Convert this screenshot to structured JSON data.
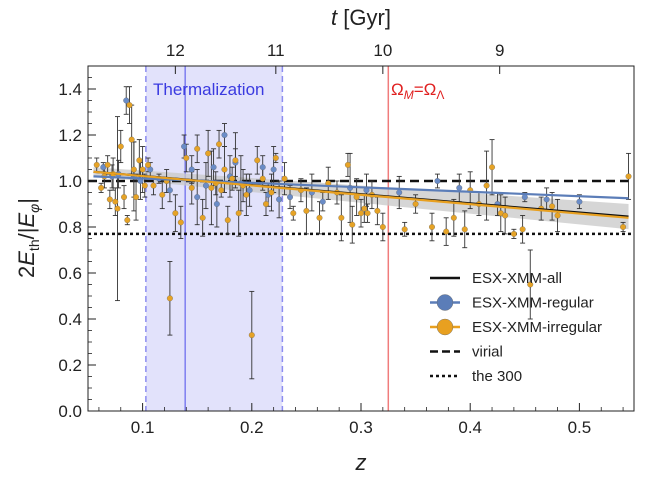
{
  "chart_data": {
    "type": "scatter",
    "xlabel": "z",
    "ylabel": "2E_th/|E_φ|",
    "top_axis_label": "t [Gyr]",
    "xlim": [
      0.05,
      0.55
    ],
    "ylim": [
      0.0,
      1.5
    ],
    "x_ticks": [
      0.1,
      0.2,
      0.3,
      0.4,
      0.5
    ],
    "x_tick_labels": [
      "0.1",
      "0.2",
      "0.3",
      "0.4",
      "0.5"
    ],
    "y_ticks": [
      0.0,
      0.2,
      0.4,
      0.6,
      0.8,
      1.0,
      1.2,
      1.4
    ],
    "y_tick_labels": [
      "0.0",
      "0.2",
      "0.4",
      "0.6",
      "0.8",
      "1.0",
      "1.2",
      "1.4"
    ],
    "top_ticks": [
      {
        "label": "12",
        "z": 0.13
      },
      {
        "label": "11",
        "z": 0.222
      },
      {
        "label": "10",
        "z": 0.32
      },
      {
        "label": "9",
        "z": 0.427
      }
    ],
    "thermalization": {
      "label": "Thermalization",
      "z_min": 0.103,
      "z_max": 0.228,
      "z_line": 0.139,
      "color": "#3a3ae0",
      "fill": "#e2e2fb"
    },
    "omega_line": {
      "label_main": "Ω",
      "label_sub": "M",
      "label_tail": "=Ω",
      "label_sub2": "Λ",
      "z": 0.325,
      "color": "#f07c7c",
      "text_color": "#e02020"
    },
    "reference_lines": [
      {
        "name": "virial",
        "y": 1.0,
        "style": "dashed"
      },
      {
        "name": "the 300",
        "y": 0.77,
        "style": "dotted"
      }
    ],
    "fits": [
      {
        "name": "ESX-XMM-all",
        "x": [
          0.055,
          0.545
        ],
        "y": [
          1.04,
          0.845
        ],
        "color": "#111111"
      },
      {
        "name": "ESX-XMM-regular",
        "x": [
          0.055,
          0.545
        ],
        "y": [
          1.02,
          0.925
        ],
        "color": "#5b7db8"
      },
      {
        "name": "ESX-XMM-irregular",
        "x": [
          0.055,
          0.545
        ],
        "y": [
          1.04,
          0.84
        ],
        "color": "#e8a020"
      }
    ],
    "fit_band": {
      "x": [
        0.055,
        0.545
      ],
      "upper": [
        1.06,
        0.9
      ],
      "lower": [
        1.02,
        0.79
      ]
    },
    "legend": [
      {
        "label": "ESX-XMM-all",
        "symbol": "line",
        "color": "#111111"
      },
      {
        "label": "ESX-XMM-regular",
        "symbol": "dot-line",
        "color": "#5b7db8"
      },
      {
        "label": "ESX-XMM-irregular",
        "symbol": "dot-line",
        "color": "#e8a020"
      },
      {
        "label": "virial",
        "symbol": "dashed",
        "color": "#111111"
      },
      {
        "label": "the 300",
        "symbol": "dotted",
        "color": "#111111"
      }
    ],
    "series": [
      {
        "name": "ESX-XMM-regular",
        "color": "#6a8cc7",
        "points": [
          [
            0.064,
            1.06,
            0.02
          ],
          [
            0.072,
            1.02,
            0.05
          ],
          [
            0.078,
            1.03,
            0.06
          ],
          [
            0.085,
            1.35,
            0.06
          ],
          [
            0.092,
            1.02,
            0.15
          ],
          [
            0.098,
            1.0,
            0.08
          ],
          [
            0.107,
            1.05,
            0.03
          ],
          [
            0.115,
            1.01,
            0.02
          ],
          [
            0.125,
            0.96,
            0.05
          ],
          [
            0.138,
            1.15,
            0.05
          ],
          [
            0.145,
            1.05,
            0.06
          ],
          [
            0.15,
            0.93,
            0.12
          ],
          [
            0.158,
            0.98,
            0.1
          ],
          [
            0.165,
            1.06,
            0.08
          ],
          [
            0.168,
            0.9,
            0.1
          ],
          [
            0.175,
            1.2,
            0.05
          ],
          [
            0.18,
            1.02,
            0.09
          ],
          [
            0.185,
            1.08,
            0.06
          ],
          [
            0.19,
            0.99,
            0.12
          ],
          [
            0.198,
            0.96,
            0.07
          ],
          [
            0.21,
            1.06,
            0.05
          ],
          [
            0.215,
            0.94,
            0.05
          ],
          [
            0.22,
            1.05,
            0.1
          ],
          [
            0.225,
            0.92,
            0.08
          ],
          [
            0.235,
            0.93,
            0.05
          ],
          [
            0.255,
            0.95,
            0.08
          ],
          [
            0.265,
            0.91,
            0.04
          ],
          [
            0.29,
            0.97,
            0.15
          ],
          [
            0.305,
            0.96,
            0.07
          ],
          [
            0.335,
            0.95,
            0.07
          ],
          [
            0.37,
            1.0,
            0.03
          ],
          [
            0.39,
            0.97,
            0.06
          ],
          [
            0.425,
            0.9,
            0.05
          ],
          [
            0.45,
            0.93,
            0.02
          ],
          [
            0.47,
            0.92,
            0.05
          ],
          [
            0.5,
            0.91,
            0.03
          ]
        ]
      },
      {
        "name": "ESX-XMM-irregular",
        "color": "#e6a326",
        "points": [
          [
            0.058,
            1.07,
            0.03
          ],
          [
            0.062,
            0.97,
            0.02
          ],
          [
            0.065,
            1.02,
            0.05
          ],
          [
            0.068,
            1.07,
            0.04
          ],
          [
            0.07,
            0.92,
            0.04
          ],
          [
            0.073,
            1.03,
            0.07
          ],
          [
            0.075,
            0.91,
            0.06
          ],
          [
            0.077,
            0.88,
            0.4
          ],
          [
            0.08,
            1.15,
            0.07
          ],
          [
            0.083,
            0.93,
            0.05
          ],
          [
            0.086,
            0.83,
            0.02
          ],
          [
            0.088,
            1.33,
            0.08
          ],
          [
            0.09,
            1.18,
            0.15
          ],
          [
            0.092,
            1.05,
            0.12
          ],
          [
            0.094,
            0.93,
            0.1
          ],
          [
            0.097,
            1.09,
            0.09
          ],
          [
            0.1,
            1.05,
            0.1
          ],
          [
            0.102,
            0.98,
            0.05
          ],
          [
            0.105,
            1.07,
            0.03
          ],
          [
            0.11,
            0.98,
            0.04
          ],
          [
            0.118,
            0.94,
            0.06
          ],
          [
            0.122,
            1.0,
            0.05
          ],
          [
            0.125,
            0.49,
            0.16
          ],
          [
            0.13,
            0.86,
            0.08
          ],
          [
            0.135,
            0.82,
            0.07
          ],
          [
            0.14,
            1.1,
            0.06
          ],
          [
            0.145,
            0.97,
            0.07
          ],
          [
            0.15,
            1.14,
            0.06
          ],
          [
            0.155,
            0.84,
            0.08
          ],
          [
            0.16,
            1.12,
            0.1
          ],
          [
            0.163,
            0.97,
            0.16
          ],
          [
            0.167,
            0.99,
            0.05
          ],
          [
            0.17,
            1.16,
            0.06
          ],
          [
            0.172,
            0.96,
            0.03
          ],
          [
            0.175,
            1.05,
            0.1
          ],
          [
            0.178,
            0.83,
            0.06
          ],
          [
            0.182,
            1.01,
            0.05
          ],
          [
            0.185,
            1.09,
            0.12
          ],
          [
            0.188,
            0.86,
            0.1
          ],
          [
            0.192,
            0.98,
            0.07
          ],
          [
            0.195,
            0.94,
            0.09
          ],
          [
            0.2,
            0.33,
            0.19
          ],
          [
            0.205,
            1.09,
            0.06
          ],
          [
            0.21,
            1.01,
            0.05
          ],
          [
            0.213,
            0.9,
            0.05
          ],
          [
            0.218,
            0.95,
            0.08
          ],
          [
            0.222,
            1.1,
            0.02
          ],
          [
            0.23,
            1.01,
            0.07
          ],
          [
            0.238,
            0.86,
            0.03
          ],
          [
            0.245,
            0.96,
            0.05
          ],
          [
            0.25,
            0.87,
            0.1
          ],
          [
            0.262,
            0.84,
            0.07
          ],
          [
            0.27,
            0.99,
            0.07
          ],
          [
            0.278,
            0.95,
            0.05
          ],
          [
            0.282,
            0.84,
            0.1
          ],
          [
            0.288,
            1.07,
            0.05
          ],
          [
            0.292,
            0.81,
            0.08
          ],
          [
            0.296,
            0.93,
            0.08
          ],
          [
            0.3,
            0.86,
            0.06
          ],
          [
            0.303,
            0.88,
            0.06
          ],
          [
            0.306,
            0.86,
            0.04
          ],
          [
            0.31,
            0.94,
            0.06
          ],
          [
            0.315,
            0.87,
            0.06
          ],
          [
            0.32,
            0.8,
            0.06
          ],
          [
            0.34,
            0.79,
            0.03
          ],
          [
            0.35,
            0.9,
            0.04
          ],
          [
            0.365,
            0.8,
            0.06
          ],
          [
            0.378,
            0.78,
            0.06
          ],
          [
            0.385,
            0.84,
            0.08
          ],
          [
            0.395,
            0.79,
            0.08
          ],
          [
            0.4,
            0.96,
            0.08
          ],
          [
            0.408,
            0.9,
            0.05
          ],
          [
            0.415,
            0.98,
            0.15
          ],
          [
            0.42,
            1.06,
            0.12
          ],
          [
            0.428,
            0.86,
            0.08
          ],
          [
            0.432,
            0.85,
            0.08
          ],
          [
            0.44,
            0.77,
            0.02
          ],
          [
            0.448,
            0.79,
            0.06
          ],
          [
            0.455,
            0.55,
            0.15
          ],
          [
            0.465,
            0.88,
            0.05
          ],
          [
            0.475,
            0.89,
            0.06
          ],
          [
            0.48,
            0.85,
            0.07
          ],
          [
            0.54,
            0.8,
            0.02
          ],
          [
            0.545,
            1.02,
            0.1
          ]
        ]
      }
    ]
  }
}
